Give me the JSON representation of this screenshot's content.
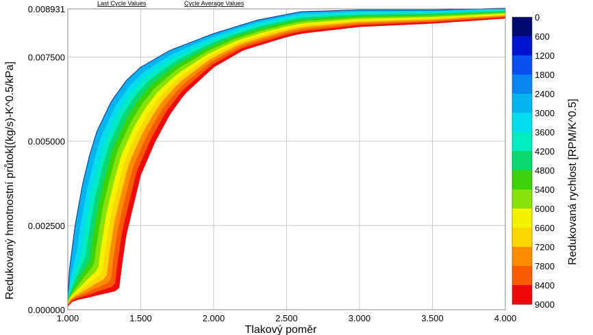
{
  "top_labels": {
    "last_cycle": "Last Cycle Values",
    "cycle_average": "Cycle Average Values"
  },
  "chart_data": {
    "type": "contour",
    "xlabel": "Tlakový poměr",
    "ylabel": "Redukovaný hmotnostní průtok[(kg/s)-K^0.5/kPa]",
    "colorbar_label": "Redukovaná rychlost [RPM/K^0.5]",
    "xlim": [
      1.0,
      4.0
    ],
    "ylim": [
      0.0,
      0.008931
    ],
    "x_ticks": [
      "1.000",
      "1.500",
      "2.000",
      "2.500",
      "3.000",
      "3.500",
      "4.000"
    ],
    "y_ticks": [
      "0.000000",
      "0.002500",
      "0.005000",
      "0.007500",
      "0.008931"
    ],
    "grid": true,
    "colorbar_levels": [
      "0",
      "600",
      "1200",
      "1800",
      "2400",
      "3000",
      "3600",
      "4200",
      "4800",
      "5400",
      "6000",
      "6600",
      "7200",
      "7800",
      "8400",
      "9000"
    ],
    "colorbar_colors": [
      "#000a6e",
      "#0014d0",
      "#0a4ff0",
      "#0a84ef",
      "#05b4ee",
      "#05dcee",
      "#02ecc4",
      "#0bd86e",
      "#3cd20a",
      "#88e20a",
      "#f4f400",
      "#fcd800",
      "#fc8c00",
      "#f85a00",
      "#ee0a0a",
      "#cc0000"
    ],
    "region_boundaries": {
      "upper_x": [
        1.0,
        1.01,
        1.05,
        1.1,
        1.15,
        1.2,
        1.3,
        1.4,
        1.5,
        1.7,
        2.0,
        2.3,
        2.6,
        3.0,
        3.5,
        4.0
      ],
      "upper_y": [
        0.0003,
        0.00115,
        0.0025,
        0.0037,
        0.0046,
        0.0053,
        0.0062,
        0.0068,
        0.0072,
        0.0077,
        0.0082,
        0.0086,
        0.00885,
        0.0089,
        0.0089,
        0.00895
      ],
      "lower_x": [
        4.0,
        3.5,
        3.0,
        2.6,
        2.5,
        2.2,
        2.0,
        1.8,
        1.7,
        1.6,
        1.5,
        1.45,
        1.4,
        1.37,
        1.35,
        1.3,
        1.25,
        1.2,
        1.15,
        1.1,
        1.05,
        1.02,
        1.0
      ],
      "lower_y": [
        0.00865,
        0.0085,
        0.0084,
        0.0082,
        0.0081,
        0.0077,
        0.0072,
        0.0064,
        0.0058,
        0.005,
        0.004,
        0.0031,
        0.0022,
        0.0013,
        0.00058,
        0.00053,
        0.00048,
        0.00043,
        0.00037,
        0.00033,
        0.00028,
        0.00022,
        0.0001
      ]
    }
  }
}
